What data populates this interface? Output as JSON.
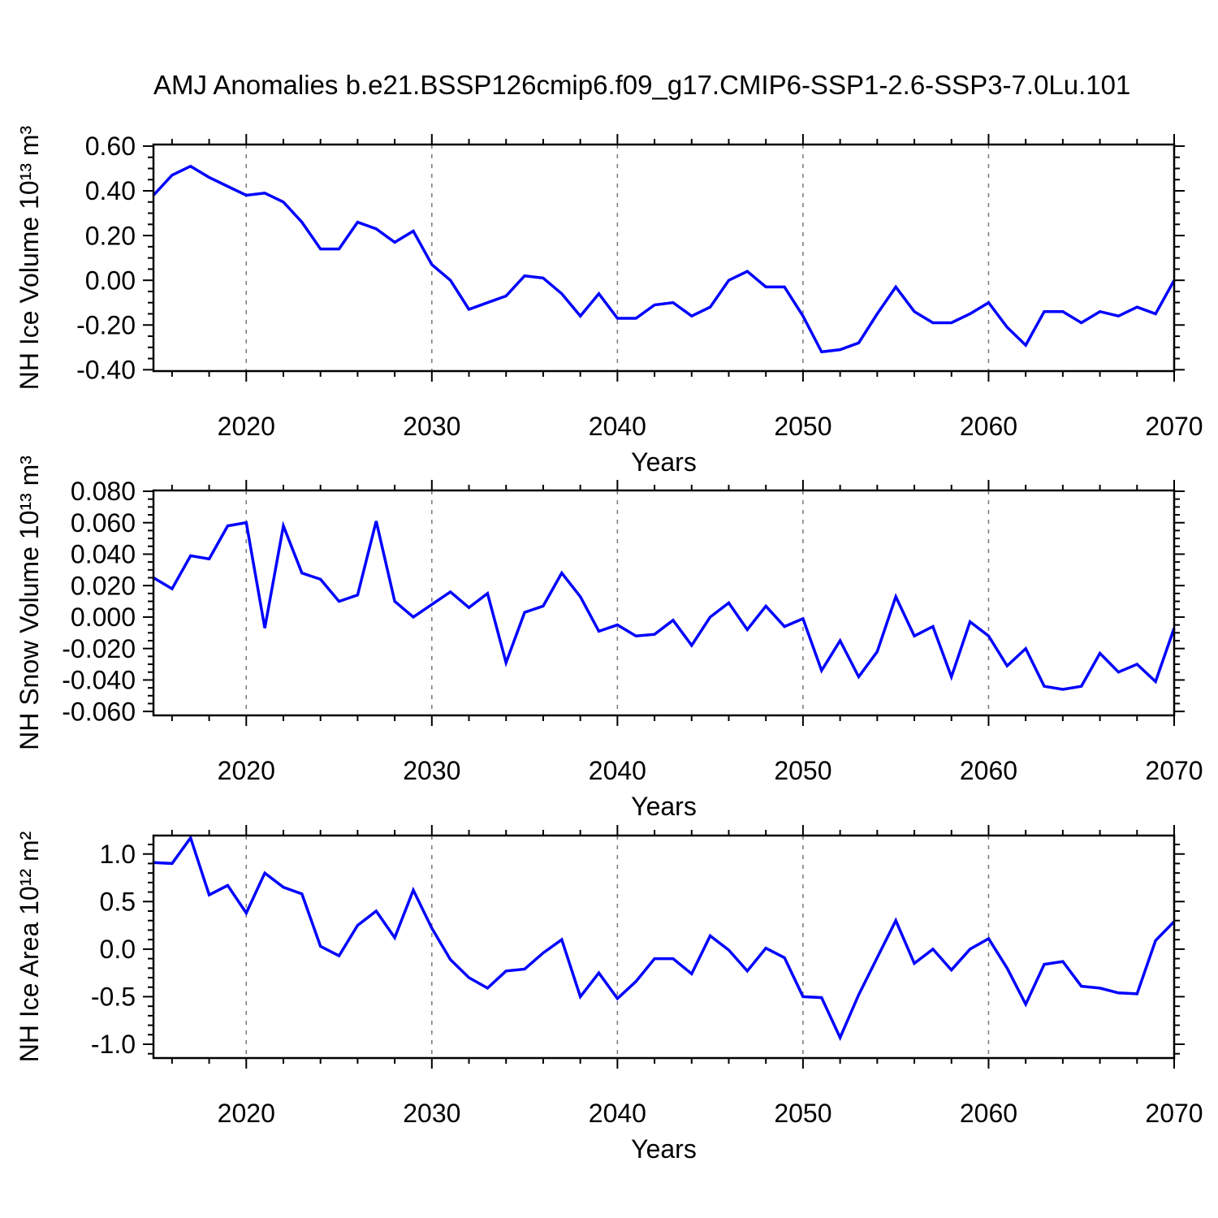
{
  "figure": {
    "title": "AMJ Anomalies b.e21.BSSP126cmip6.f09_g17.CMIP6-SSP1-2.6-SSP3-7.0Lu.101",
    "background_color": "#ffffff",
    "text_color": "#000000",
    "line_color": "#0000ff",
    "grid_color": "#787878"
  },
  "chart_data": [
    {
      "type": "line",
      "id": "nh-ice-volume",
      "ylabel": "NH Ice Volume 10¹³ m³",
      "xlabel": "Years",
      "line_color": "#0000ff",
      "grid_color": "#787878",
      "grid": true,
      "legend": null,
      "x_start": 2015,
      "x_end": 2070,
      "x_step": 1,
      "values": [
        0.38,
        0.47,
        0.51,
        0.46,
        0.42,
        0.38,
        0.39,
        0.35,
        0.26,
        0.14,
        0.14,
        0.26,
        0.23,
        0.17,
        0.22,
        0.07,
        0.0,
        -0.13,
        -0.1,
        -0.07,
        0.02,
        0.01,
        -0.06,
        -0.16,
        -0.06,
        -0.17,
        -0.17,
        -0.11,
        -0.1,
        -0.16,
        -0.12,
        0.0,
        0.04,
        -0.03,
        -0.03,
        -0.16,
        -0.32,
        -0.31,
        -0.28,
        -0.15,
        -0.03,
        -0.14,
        -0.19,
        -0.19,
        -0.15,
        -0.1,
        -0.21,
        -0.29,
        -0.14,
        -0.14,
        -0.19,
        -0.14,
        -0.16,
        -0.12,
        -0.15,
        0.0
      ],
      "ylim": [
        -0.406,
        0.607
      ],
      "yticks": [
        0.6,
        0.4,
        0.2,
        0.0,
        -0.2,
        -0.4
      ],
      "ytick_labels": [
        "0.60",
        "0.40",
        "0.20",
        "0.00",
        "-0.20",
        "-0.40"
      ],
      "y_minor_step": 0.05,
      "xticks": [
        2020,
        2030,
        2040,
        2050,
        2060,
        2070
      ],
      "xtick_labels": [
        "2020",
        "2030",
        "2040",
        "2050",
        "2060",
        "2070"
      ],
      "x_minor_step": 2,
      "grid_lines_at": [
        2020,
        2030,
        2040,
        2050,
        2060
      ]
    },
    {
      "type": "line",
      "id": "nh-snow-volume",
      "ylabel": "NH Snow Volume 10¹³ m³",
      "xlabel": "Years",
      "line_color": "#0000ff",
      "grid_color": "#787878",
      "grid": true,
      "legend": null,
      "x_start": 2015,
      "x_end": 2070,
      "x_step": 1,
      "values": [
        0.025,
        0.018,
        0.039,
        0.037,
        0.058,
        0.06,
        -0.007,
        0.058,
        0.028,
        0.024,
        0.01,
        0.014,
        0.061,
        0.01,
        0.0,
        0.008,
        0.016,
        0.006,
        0.015,
        -0.029,
        0.003,
        0.007,
        0.028,
        0.013,
        -0.009,
        -0.005,
        -0.012,
        -0.011,
        -0.002,
        -0.018,
        0.0,
        0.009,
        -0.008,
        0.007,
        -0.006,
        -0.001,
        -0.034,
        -0.015,
        -0.038,
        -0.022,
        0.013,
        -0.012,
        -0.006,
        -0.038,
        -0.003,
        -0.012,
        -0.031,
        -0.02,
        -0.044,
        -0.046,
        -0.044,
        -0.023,
        -0.035,
        -0.03,
        -0.041,
        -0.007
      ],
      "ylim": [
        -0.0625,
        0.0805
      ],
      "yticks": [
        0.08,
        0.06,
        0.04,
        0.02,
        0.0,
        -0.02,
        -0.04,
        -0.06
      ],
      "ytick_labels": [
        "0.080",
        "0.060",
        "0.040",
        "0.020",
        "0.000",
        "-0.020",
        "-0.040",
        "-0.060"
      ],
      "y_minor_step": 0.005,
      "xticks": [
        2020,
        2030,
        2040,
        2050,
        2060,
        2070
      ],
      "xtick_labels": [
        "2020",
        "2030",
        "2040",
        "2050",
        "2060",
        "2070"
      ],
      "x_minor_step": 2,
      "grid_lines_at": [
        2020,
        2030,
        2040,
        2050,
        2060
      ]
    },
    {
      "type": "line",
      "id": "nh-ice-area",
      "ylabel": "NH Ice Area 10¹² m²",
      "xlabel": "Years",
      "line_color": "#0000ff",
      "grid_color": "#787878",
      "grid": true,
      "legend": null,
      "x_start": 2015,
      "x_end": 2070,
      "x_step": 1,
      "values": [
        0.91,
        0.9,
        1.17,
        0.57,
        0.67,
        0.38,
        0.8,
        0.65,
        0.58,
        0.03,
        -0.07,
        0.25,
        0.4,
        0.12,
        0.62,
        0.22,
        -0.11,
        -0.3,
        -0.41,
        -0.23,
        -0.21,
        -0.04,
        0.1,
        -0.5,
        -0.25,
        -0.52,
        -0.34,
        -0.1,
        -0.1,
        -0.26,
        0.14,
        -0.01,
        -0.23,
        0.01,
        -0.09,
        -0.5,
        -0.51,
        -0.93,
        -0.48,
        -0.09,
        0.3,
        -0.15,
        0.0,
        -0.22,
        0.0,
        0.11,
        -0.2,
        -0.58,
        -0.16,
        -0.13,
        -0.39,
        -0.41,
        -0.46,
        -0.47,
        0.09,
        0.29
      ],
      "ylim": [
        -1.145,
        1.194
      ],
      "yticks": [
        1.0,
        0.5,
        0.0,
        -0.5,
        -1.0
      ],
      "ytick_labels": [
        "1.0",
        "0.5",
        "0.0",
        "-0.5",
        "-1.0"
      ],
      "y_minor_step": 0.1,
      "xticks": [
        2020,
        2030,
        2040,
        2050,
        2060,
        2070
      ],
      "xtick_labels": [
        "2020",
        "2030",
        "2040",
        "2050",
        "2060",
        "2070"
      ],
      "x_minor_step": 2,
      "grid_lines_at": [
        2020,
        2030,
        2040,
        2050,
        2060
      ]
    }
  ]
}
